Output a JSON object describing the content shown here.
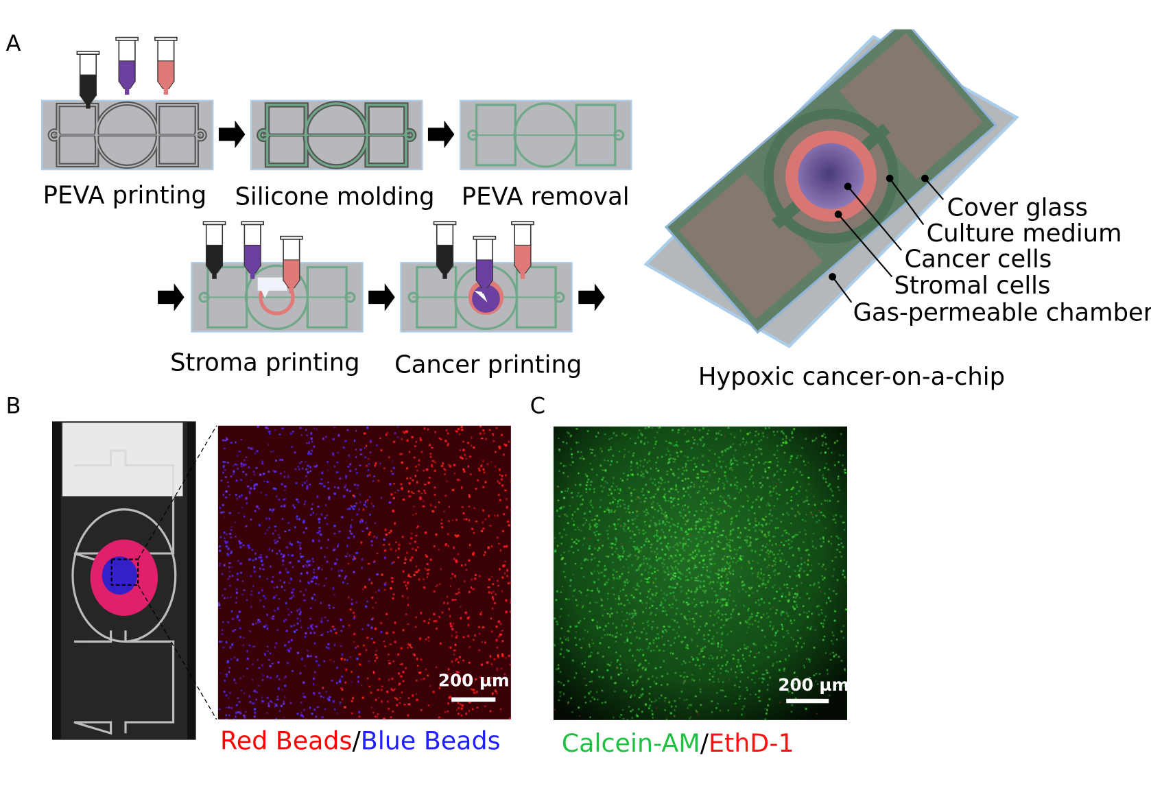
{
  "panels": {
    "a": "A",
    "b": "B",
    "c": "C"
  },
  "steps": [
    {
      "label": "PEVA printing"
    },
    {
      "label": "Silicone molding"
    },
    {
      "label": "PEVA removal"
    },
    {
      "label": "Stroma printing"
    },
    {
      "label": "Cancer printing"
    }
  ],
  "chip": {
    "title": "Hypoxic cancer-on-a-chip",
    "labels": [
      "Cover glass",
      "Culture medium",
      "Cancer cells",
      "Stromal cells",
      "Gas-permeable chamber"
    ]
  },
  "panel_b": {
    "scale_bar": "200 µm",
    "caption": {
      "red": "Red Beads",
      "sep": "/",
      "blue": "Blue Beads"
    }
  },
  "panel_c": {
    "scale_bar": "200 µm",
    "caption": {
      "green": "Calcein-AM",
      "sep": "/",
      "red": "EthD-1"
    }
  },
  "colors": {
    "peva": "#555555",
    "silicone": "#6fa888",
    "stroma": "#e07a78",
    "cancer": "#6a3fa0",
    "red_text": "#ff0000",
    "blue_text": "#2020ff",
    "green_text": "#20c040"
  }
}
